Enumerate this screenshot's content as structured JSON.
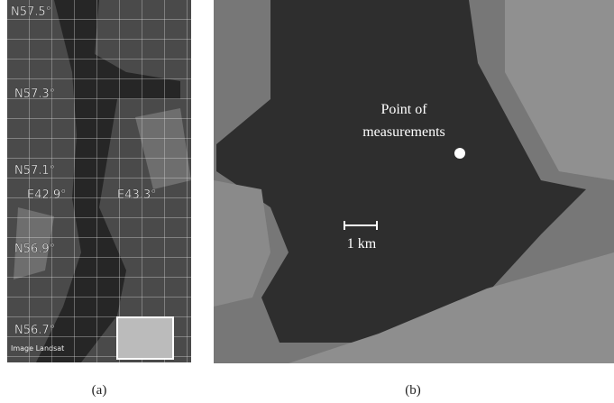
{
  "panel_a": {
    "labels": [
      "N57.5°",
      "N57.3°",
      "N57.1°",
      "E42.9°",
      "E43.3°",
      "N56.9°",
      "N56.7°"
    ],
    "credit": "Image Landsat",
    "caption": "(a)"
  },
  "panel_b": {
    "point_label": [
      "Point of",
      "measurements"
    ],
    "scale_label": "1 km",
    "caption": "(b)"
  }
}
